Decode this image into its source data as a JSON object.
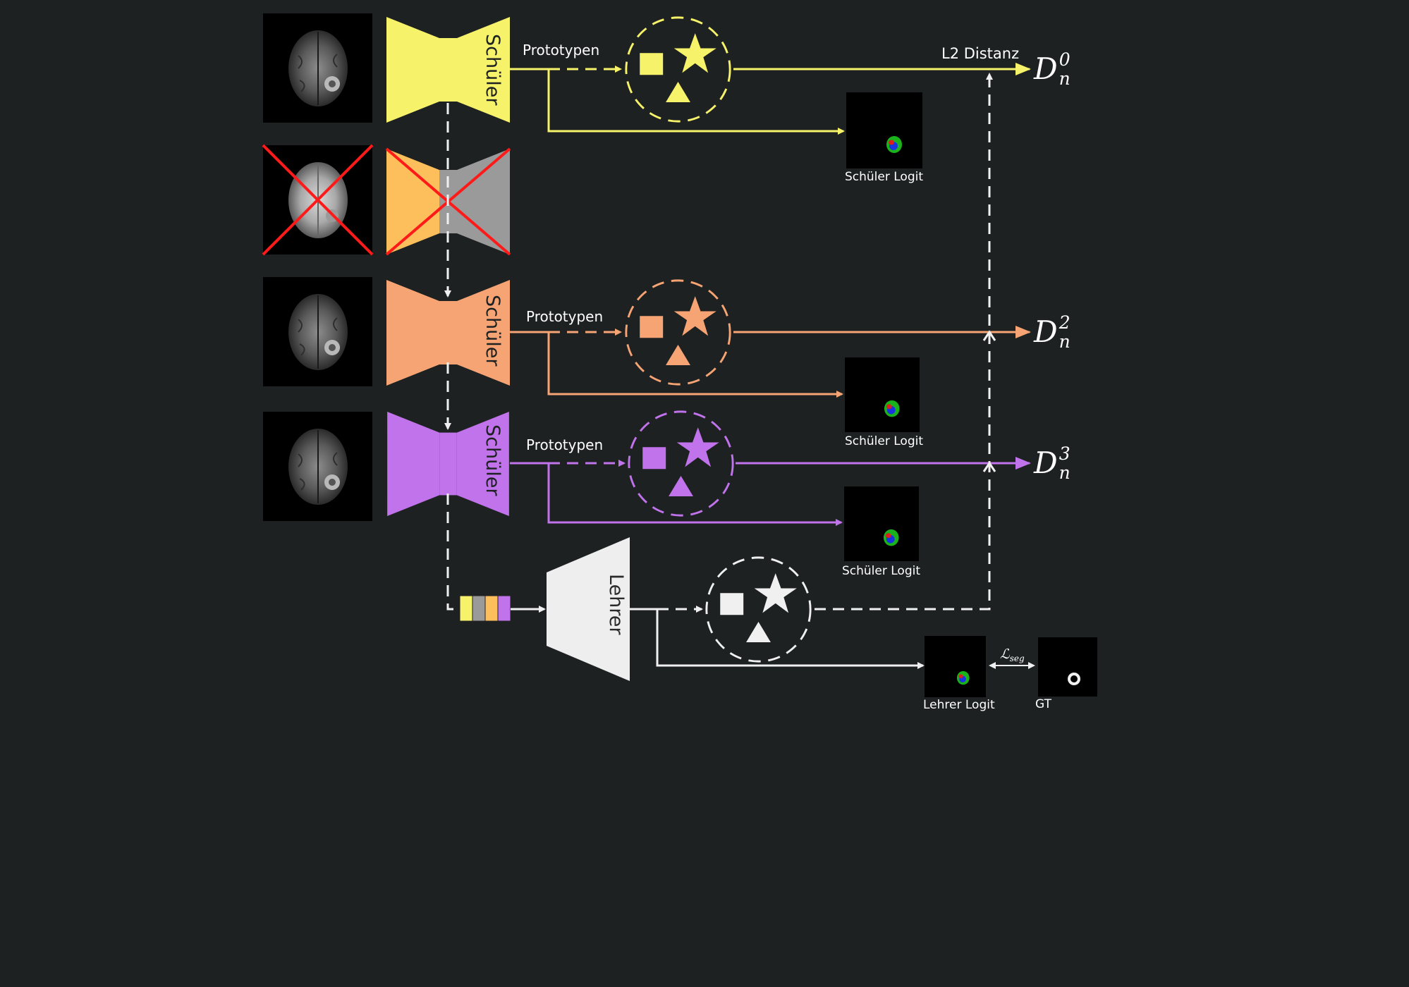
{
  "colors": {
    "background": "#1e2122",
    "yellow": "#f6f26a",
    "gray": "#9a9a9a",
    "orange": "#f7a474",
    "light_orange": "#fdbf5c",
    "purple": "#c173ec",
    "white": "#f0f0f0",
    "cross": "#ff1a1a"
  },
  "rows": [
    {
      "encoder_label": "Schüler",
      "proto_label": "Prototypen",
      "logit_label": "Schüler Logit"
    },
    {
      "encoder_label": "Schüler",
      "proto_label": "Prototypen",
      "logit_label": "Schüler Logit"
    },
    {
      "encoder_label": "Schüler",
      "proto_label": "Prototypen",
      "logit_label": "Schüler Logit"
    }
  ],
  "distance_label": "L2 Distanz",
  "d_outputs": [
    {
      "base": "D",
      "sup": "0",
      "sub": "n"
    },
    {
      "base": "D",
      "sup": "2",
      "sub": "n"
    },
    {
      "base": "D",
      "sup": "3",
      "sub": "n"
    }
  ],
  "teacher": {
    "label": "Lehrer",
    "logit_label": "Lehrer Logit",
    "gt_label": "GT",
    "loss_label": "ℒ",
    "loss_sub": "seg"
  },
  "icons": [
    "mri-slice-icon",
    "prototype-cluster-icon",
    "segmentation-map-icon",
    "red-cross-icon"
  ]
}
